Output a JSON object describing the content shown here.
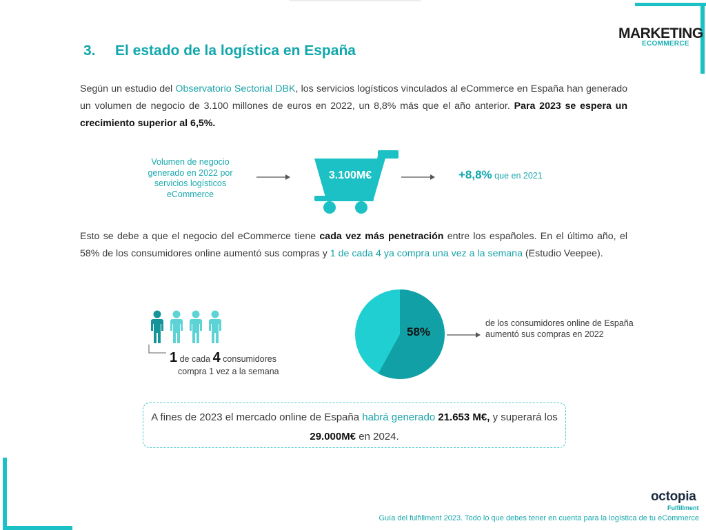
{
  "header": {
    "logo_main": "MARKETING",
    "logo_sub": "ECOMMERCE"
  },
  "section": {
    "number": "3.",
    "title": "El estado de la logística en España"
  },
  "intro": {
    "p1_a": "Según un estudio del ",
    "p1_link": "Observatorio Sectorial DBK",
    "p1_b": ", los servicios logísticos vinculados al eCommerce en España han generado un volumen de negocio de 3.100 millones de euros en 2022, un 8,8% más que el año anterior. ",
    "p1_bold": "Para 2023 se espera un crecimiento superior al 6,5%."
  },
  "volume_infographic": {
    "label": "Volumen de negocio generado en 2022 por servicios logísticos eCommerce",
    "value": "3.100M€",
    "growth": "+8,8%",
    "growth_suffix": " que en 2021",
    "colors": {
      "accent": "#1bc1c4",
      "accent_dark": "#11a7ad"
    }
  },
  "penetration": {
    "p2_a": "Esto se debe a que el negocio del eCommerce tiene ",
    "p2_bold": "cada vez más penetración",
    "p2_b": " entre los españoles. En el último año, el 58% de los consumidores online aumentó sus compras y ",
    "p2_link": "1 de cada 4 ya compra una vez a la semana",
    "p2_c": " (Estudio Veepee)."
  },
  "people_stat": {
    "num1": "1",
    "text1": " de cada ",
    "num2": "4",
    "text2": " consumidores",
    "line2": "compra 1 vez a la semana",
    "highlighted_ratio": 0.25,
    "icon": "person-icon"
  },
  "pie": {
    "label": "58%",
    "percent": 58,
    "description": "de los consumidores online de España aumentó sus compras en 2022",
    "colors": {
      "main": "#11a0a5",
      "rest": "#1fcfd1"
    }
  },
  "callout": {
    "a": "A fines de 2023 el mercado online de España ",
    "link": "habrá generado",
    "bold1": " 21.653 M€,",
    "b": " y superará los ",
    "bold2": "29.000M€",
    "c": " en 2024."
  },
  "footer": {
    "brand": "octopia",
    "brand_sub": "Fulfillment",
    "text": "Guía del fulfillment 2023. Todo lo que debes tener en cuenta para la logística de tu eCommerce"
  }
}
